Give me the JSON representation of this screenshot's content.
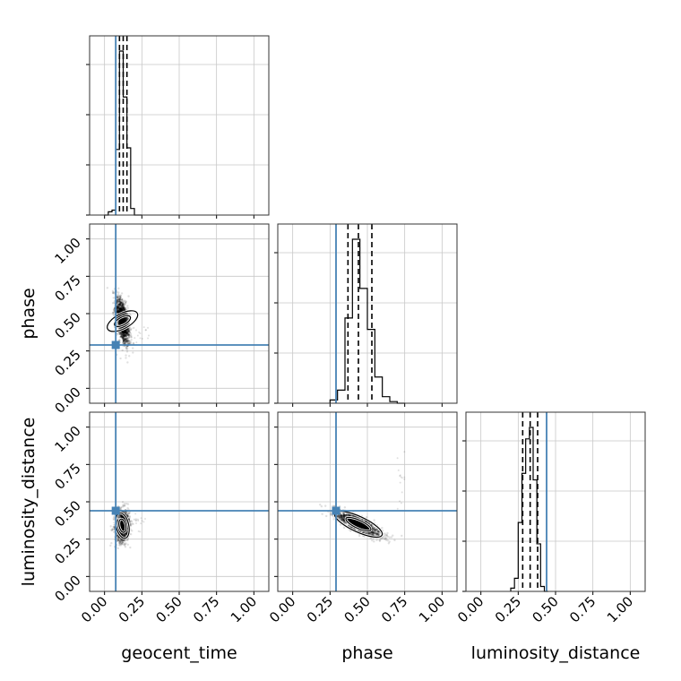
{
  "chart_data": {
    "type": "corner",
    "parameters": [
      "geocent_time",
      "phase",
      "luminosity_distance"
    ],
    "axis_range": [
      -0.1,
      1.1
    ],
    "ticks": [
      0.0,
      0.25,
      0.5,
      0.75,
      1.0
    ],
    "tick_labels": [
      "0.00",
      "0.25",
      "0.50",
      "0.75",
      "1.00"
    ],
    "grid": true,
    "truth_color": "#4682b4",
    "truths": {
      "geocent_time": 0.075,
      "phase": 0.29,
      "luminosity_distance": 0.44
    },
    "histograms": {
      "geocent_time": {
        "bin_edges": [
          0.0,
          0.025,
          0.05,
          0.075,
          0.1,
          0.125,
          0.15,
          0.175,
          0.2,
          0.225,
          0.25
        ],
        "counts": [
          0.0,
          0.02,
          0.03,
          0.4,
          1.0,
          0.72,
          0.41,
          0.04,
          0.0,
          0.0
        ],
        "quantiles": [
          0.1,
          0.125,
          0.15
        ]
      },
      "phase": {
        "bin_edges": [
          0.25,
          0.3,
          0.35,
          0.4,
          0.45,
          0.5,
          0.55,
          0.6,
          0.65,
          0.7,
          0.75
        ],
        "counts": [
          0.02,
          0.08,
          0.52,
          1.0,
          0.7,
          0.45,
          0.16,
          0.04,
          0.01,
          0.0
        ],
        "quantiles": [
          0.37,
          0.44,
          0.53
        ]
      },
      "luminosity_distance": {
        "bin_edges": [
          0.2,
          0.225,
          0.25,
          0.275,
          0.3,
          0.325,
          0.35,
          0.375,
          0.4,
          0.425,
          0.45
        ],
        "counts": [
          0.02,
          0.08,
          0.42,
          0.72,
          0.93,
          1.0,
          0.68,
          0.29,
          0.03,
          0.0
        ],
        "quantiles": [
          0.28,
          0.33,
          0.38
        ]
      }
    },
    "contours_2d": [
      {
        "x": "geocent_time",
        "y": "phase",
        "mean": [
          0.12,
          0.45
        ],
        "sd": [
          0.025,
          0.085
        ],
        "corr": -0.55,
        "tail_x": [
          0.2,
          0.3
        ],
        "tail_y": [
          0.3,
          0.42
        ]
      },
      {
        "x": "geocent_time",
        "y": "luminosity_distance",
        "mean": [
          0.12,
          0.34
        ],
        "sd": [
          0.025,
          0.055
        ],
        "corr": 0.1,
        "tail_x": [
          0.2,
          0.28
        ],
        "tail_y": [
          0.3,
          0.42
        ]
      },
      {
        "x": "phase",
        "y": "luminosity_distance",
        "mean": [
          0.44,
          0.35
        ],
        "sd": [
          0.08,
          0.045
        ],
        "corr": -0.82,
        "tail_x": [
          0.7,
          0.75
        ],
        "tail_y": [
          0.3,
          0.92
        ]
      }
    ]
  }
}
